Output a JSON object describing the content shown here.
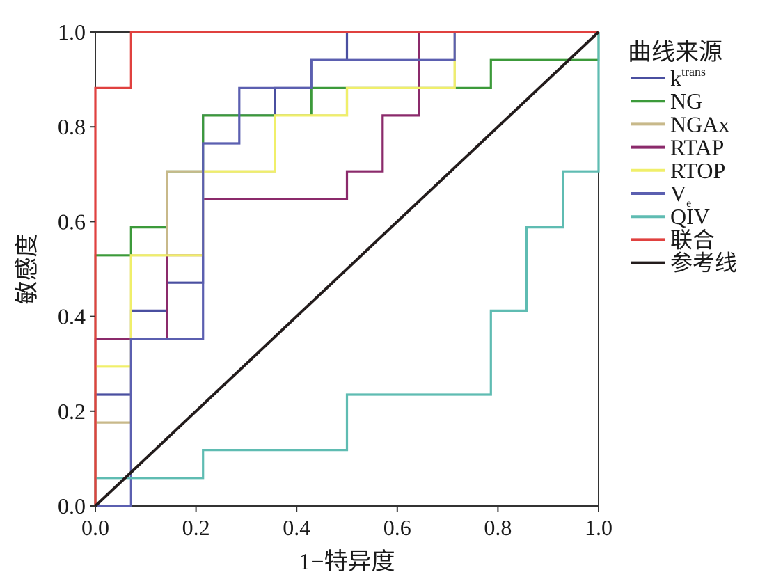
{
  "chart_data": {
    "type": "line",
    "xlabel": "1−特异度",
    "ylabel": "敏感度",
    "xlim": [
      0,
      1
    ],
    "ylim": [
      0,
      1
    ],
    "xticks": [
      "0.0",
      "0.2",
      "0.4",
      "0.6",
      "0.8",
      "1.0"
    ],
    "yticks": [
      "0.0",
      "0.2",
      "0.4",
      "0.6",
      "0.8",
      "1.0"
    ],
    "grid": false,
    "legend_title": "曲线来源",
    "legend_position": "right",
    "series": [
      {
        "name": "k",
        "name_sup": "trans",
        "color": "#4a4fa0",
        "points": [
          [
            0,
            0
          ],
          [
            0,
            0.235
          ],
          [
            0.071,
            0.235
          ],
          [
            0.071,
            0.412
          ],
          [
            0.143,
            0.412
          ],
          [
            0.143,
            0.471
          ],
          [
            0.214,
            0.471
          ],
          [
            0.214,
            0.824
          ],
          [
            0.357,
            0.824
          ],
          [
            0.357,
            0.882
          ],
          [
            0.429,
            0.882
          ],
          [
            0.429,
            0.941
          ],
          [
            0.5,
            0.941
          ],
          [
            0.5,
            1
          ],
          [
            1,
            1
          ]
        ]
      },
      {
        "name": "NG",
        "color": "#3c9a3a",
        "points": [
          [
            0,
            0
          ],
          [
            0,
            0.529
          ],
          [
            0.071,
            0.529
          ],
          [
            0.071,
            0.588
          ],
          [
            0.143,
            0.588
          ],
          [
            0.143,
            0.706
          ],
          [
            0.214,
            0.706
          ],
          [
            0.214,
            0.824
          ],
          [
            0.429,
            0.824
          ],
          [
            0.429,
            0.882
          ],
          [
            0.786,
            0.882
          ],
          [
            0.786,
            0.941
          ],
          [
            1,
            0.941
          ],
          [
            1,
            1
          ]
        ]
      },
      {
        "name": "NGAx",
        "color": "#c8b98a",
        "points": [
          [
            0,
            0
          ],
          [
            0,
            0.176
          ],
          [
            0.071,
            0.176
          ],
          [
            0.071,
            0.529
          ],
          [
            0.143,
            0.529
          ],
          [
            0.143,
            0.706
          ],
          [
            0.357,
            0.706
          ],
          [
            0.357,
            0.824
          ],
          [
            0.5,
            0.824
          ],
          [
            0.5,
            0.882
          ],
          [
            0.714,
            0.882
          ],
          [
            0.714,
            1
          ],
          [
            1,
            1
          ]
        ]
      },
      {
        "name": "RTAP",
        "color": "#8b2a6b",
        "points": [
          [
            0,
            0
          ],
          [
            0,
            0.353
          ],
          [
            0.143,
            0.353
          ],
          [
            0.143,
            0.529
          ],
          [
            0.214,
            0.529
          ],
          [
            0.214,
            0.647
          ],
          [
            0.5,
            0.647
          ],
          [
            0.5,
            0.706
          ],
          [
            0.571,
            0.706
          ],
          [
            0.571,
            0.824
          ],
          [
            0.643,
            0.824
          ],
          [
            0.643,
            1
          ],
          [
            1,
            1
          ]
        ]
      },
      {
        "name": "RTOP",
        "color": "#f0ef6a",
        "points": [
          [
            0,
            0
          ],
          [
            0,
            0.294
          ],
          [
            0.071,
            0.294
          ],
          [
            0.071,
            0.529
          ],
          [
            0.214,
            0.529
          ],
          [
            0.214,
            0.706
          ],
          [
            0.357,
            0.706
          ],
          [
            0.357,
            0.824
          ],
          [
            0.5,
            0.824
          ],
          [
            0.5,
            0.882
          ],
          [
            0.714,
            0.882
          ],
          [
            0.714,
            1
          ],
          [
            1,
            1
          ]
        ]
      },
      {
        "name": "V",
        "name_sub": "e",
        "color": "#5b5fb0",
        "points": [
          [
            0,
            0
          ],
          [
            0.071,
            0
          ],
          [
            0.071,
            0.353
          ],
          [
            0.214,
            0.353
          ],
          [
            0.214,
            0.765
          ],
          [
            0.286,
            0.765
          ],
          [
            0.286,
            0.882
          ],
          [
            0.429,
            0.882
          ],
          [
            0.429,
            0.941
          ],
          [
            0.714,
            0.941
          ],
          [
            0.714,
            1
          ],
          [
            1,
            1
          ]
        ]
      },
      {
        "name": "QIV",
        "color": "#5fbcb2",
        "points": [
          [
            0,
            0
          ],
          [
            0,
            0.059
          ],
          [
            0.214,
            0.059
          ],
          [
            0.214,
            0.118
          ],
          [
            0.5,
            0.118
          ],
          [
            0.5,
            0.235
          ],
          [
            0.786,
            0.235
          ],
          [
            0.786,
            0.412
          ],
          [
            0.857,
            0.412
          ],
          [
            0.857,
            0.588
          ],
          [
            0.929,
            0.588
          ],
          [
            0.929,
            0.706
          ],
          [
            1,
            0.706
          ],
          [
            1,
            1
          ]
        ]
      },
      {
        "name": "联合",
        "color": "#e0413f",
        "points": [
          [
            0,
            0
          ],
          [
            0,
            0.882
          ],
          [
            0.071,
            0.882
          ],
          [
            0.071,
            1
          ],
          [
            1,
            1
          ]
        ]
      },
      {
        "name": "参考线",
        "color": "#231c1c",
        "points": [
          [
            0,
            0
          ],
          [
            1,
            1
          ]
        ]
      }
    ]
  }
}
